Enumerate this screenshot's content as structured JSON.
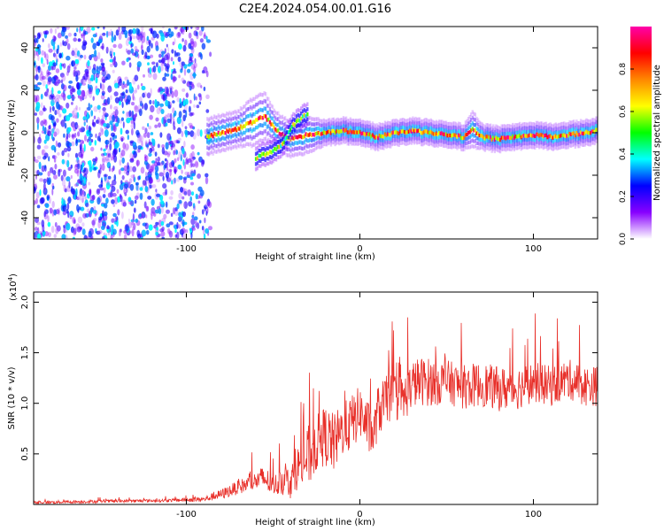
{
  "page": {
    "title": "C2E4.2024.054.00.01.G16"
  },
  "colors": {
    "background": "#ffffff",
    "snr_line": "#e8302a",
    "axis": "#000000",
    "colormap": [
      "#ffffff",
      "#8800ff",
      "#0000ff",
      "#00ffff",
      "#00ff00",
      "#ffff00",
      "#ff8800",
      "#ff0000",
      "#ff00aa"
    ]
  },
  "chart_data": [
    {
      "type": "heatmap",
      "title": "C2E4.2024.054.00.01.G16",
      "xlabel": "Height of straight line (km)",
      "ylabel": "Frequency (Hz)",
      "xlim": [
        -188,
        137
      ],
      "ylim": [
        -50,
        50
      ],
      "x_ticks": [
        -100,
        0,
        100
      ],
      "y_ticks": [
        -40,
        -20,
        0,
        20,
        40
      ],
      "colorbar": {
        "label": "Normalized spectral amplitude",
        "range": [
          0,
          1
        ],
        "ticks": [
          0.0,
          0.2,
          0.4,
          0.6,
          0.8
        ]
      },
      "noise_region_x": [
        -188,
        -86
      ],
      "ridge": {
        "x": [
          -88,
          -80,
          -70,
          -62,
          -55,
          -50,
          -45,
          -40,
          -35,
          -30,
          -20,
          -10,
          0,
          10,
          20,
          30,
          40,
          50,
          60,
          65,
          70,
          80,
          90,
          100,
          110,
          120,
          130,
          137
        ],
        "f": [
          -2,
          0,
          2,
          5,
          8,
          3,
          -1,
          -3,
          -2,
          -1,
          0,
          1,
          0,
          -2,
          0,
          1,
          0,
          -1,
          -2,
          2,
          -2,
          -3,
          -2,
          -1,
          -2,
          -1,
          0,
          1
        ],
        "width": [
          3,
          3,
          3,
          4,
          4,
          3,
          3,
          3,
          3,
          3,
          2,
          2,
          2,
          2,
          2,
          2,
          2,
          2,
          2,
          3,
          2,
          2,
          2,
          2,
          2,
          2,
          2,
          2
        ]
      },
      "secondary_branch": {
        "x": [
          -60,
          -52,
          -45,
          -38,
          -30
        ],
        "f": [
          -12,
          -9,
          -6,
          4,
          9
        ]
      },
      "grid": false
    },
    {
      "type": "line",
      "xlabel": "Height of straight line (km)",
      "ylabel": "SNR (10 * v/v)",
      "y_multiplier_label": "(x10",
      "y_multiplier_exp": "4",
      "y_multiplier_close": ")",
      "xlim": [
        -188,
        137
      ],
      "ylim": [
        0,
        21000
      ],
      "x_ticks": [
        -100,
        0,
        100
      ],
      "y_ticks": [
        5000,
        10000,
        15000,
        20000
      ],
      "y_tick_labels": [
        "0.5",
        "1.0",
        "1.5",
        "2.0"
      ],
      "series": [
        {
          "x": [
            -188,
            -150,
            -110,
            -90,
            -80,
            -70,
            -60,
            -55,
            -50,
            -45,
            -40,
            -35,
            -30,
            -25,
            -20,
            -15,
            -10,
            -5,
            0,
            5,
            8,
            10,
            15,
            20,
            25,
            30,
            35,
            40,
            50,
            60,
            70,
            80,
            90,
            100,
            110,
            120,
            130,
            137
          ],
          "mean": [
            200,
            300,
            400,
            500,
            1000,
            1700,
            2300,
            2600,
            1800,
            2400,
            2200,
            3900,
            4600,
            6000,
            6800,
            6000,
            7400,
            8000,
            9200,
            7500,
            6800,
            9000,
            10300,
            10700,
            10300,
            11900,
            12200,
            12100,
            12100,
            11600,
            11900,
            11400,
            11500,
            12100,
            11700,
            12400,
            11700,
            11700
          ],
          "spread": [
            150,
            150,
            150,
            250,
            500,
            700,
            900,
            1400,
            900,
            1500,
            1600,
            2200,
            3200,
            2800,
            3000,
            3000,
            2600,
            2800,
            2600,
            2600,
            2200,
            2600,
            2400,
            2400,
            2400,
            2400,
            2400,
            2400,
            2200,
            2200,
            2200,
            2200,
            2200,
            2000,
            2000,
            2000,
            2000,
            2000
          ]
        }
      ],
      "grid": false
    }
  ]
}
